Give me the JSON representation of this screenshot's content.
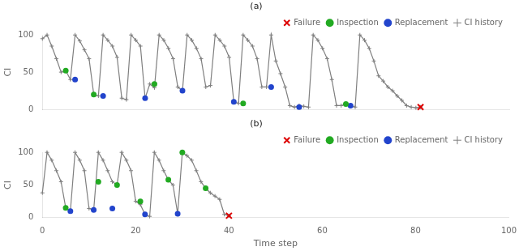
{
  "chart_data": [
    {
      "type": "line",
      "title": "(a)",
      "ylabel": "CI",
      "xlim": [
        0,
        100
      ],
      "ylim": [
        0,
        100
      ],
      "xticks": [
        0,
        20,
        40,
        60,
        80,
        100
      ],
      "yticks": [
        0,
        50,
        100
      ],
      "grid": false,
      "legend": "upper right",
      "tick_labels": "y",
      "series": [
        {
          "name": "CI history",
          "type": "line",
          "color": "#7f7f7f",
          "marker": "plus",
          "x": [
            0,
            1,
            2,
            3,
            4,
            5,
            6,
            7,
            8,
            9,
            10,
            11,
            12,
            13,
            14,
            15,
            16,
            17,
            18,
            19,
            20,
            21,
            22,
            23,
            24,
            25,
            26,
            27,
            28,
            29,
            30,
            31,
            32,
            33,
            34,
            35,
            36,
            37,
            38,
            39,
            40,
            41,
            42,
            43,
            44,
            45,
            46,
            47,
            48,
            49,
            50,
            51,
            52,
            53,
            54,
            55,
            56,
            57,
            58,
            59,
            60,
            61,
            62,
            63,
            64,
            65,
            66,
            67,
            68,
            69,
            70,
            71,
            72,
            73,
            74,
            75,
            76,
            77,
            78,
            79,
            80,
            81
          ],
          "values": [
            95,
            100,
            85,
            68,
            50,
            52,
            40,
            100,
            92,
            80,
            68,
            20,
            18,
            100,
            93,
            85,
            70,
            15,
            13,
            100,
            93,
            85,
            15,
            34,
            29,
            100,
            93,
            82,
            68,
            30,
            25,
            100,
            93,
            82,
            68,
            30,
            32,
            100,
            93,
            85,
            70,
            10,
            8,
            100,
            93,
            85,
            68,
            30,
            30,
            100,
            65,
            48,
            30,
            5,
            3,
            5,
            4,
            3,
            100,
            93,
            82,
            68,
            40,
            5,
            5,
            7,
            5,
            3,
            100,
            93,
            82,
            65,
            45,
            38,
            30,
            25,
            18,
            12,
            5,
            3,
            2,
            3
          ]
        },
        {
          "name": "Failure",
          "type": "scatter",
          "color": "#dd0000",
          "marker": "x",
          "x": [
            81
          ],
          "values": [
            3
          ]
        },
        {
          "name": "Inspection",
          "type": "scatter",
          "color": "#22aa22",
          "marker": "circle",
          "x": [
            5,
            11,
            24,
            43,
            65
          ],
          "values": [
            52,
            20,
            34,
            8,
            7
          ]
        },
        {
          "name": "Replacement",
          "type": "scatter",
          "color": "#2244cc",
          "marker": "circle",
          "x": [
            7,
            13,
            22,
            30,
            41,
            49,
            55,
            66
          ],
          "values": [
            40,
            18,
            15,
            25,
            10,
            30,
            3,
            5
          ]
        }
      ]
    },
    {
      "type": "line",
      "title": "(b)",
      "xlabel": "Time step",
      "ylabel": "CI",
      "xlim": [
        0,
        100
      ],
      "ylim": [
        0,
        100
      ],
      "xticks": [
        0,
        20,
        40,
        60,
        80,
        100
      ],
      "yticks": [
        0,
        50,
        100
      ],
      "grid": false,
      "legend": "upper right",
      "series": [
        {
          "name": "CI history",
          "type": "line",
          "color": "#7f7f7f",
          "marker": "plus",
          "x": [
            0,
            1,
            2,
            3,
            4,
            5,
            6,
            7,
            8,
            9,
            10,
            11,
            12,
            13,
            14,
            15,
            16,
            17,
            18,
            19,
            20,
            21,
            22,
            23,
            24,
            25,
            26,
            27,
            28,
            29,
            30,
            31,
            32,
            33,
            34,
            35,
            36,
            37,
            38,
            39,
            40
          ],
          "values": [
            38,
            100,
            88,
            72,
            55,
            15,
            10,
            100,
            88,
            72,
            14,
            12,
            100,
            88,
            72,
            55,
            50,
            100,
            88,
            72,
            25,
            20,
            5,
            2,
            100,
            88,
            72,
            58,
            50,
            6,
            100,
            95,
            88,
            72,
            55,
            45,
            38,
            33,
            28,
            5,
            3
          ]
        },
        {
          "name": "Failure",
          "type": "scatter",
          "color": "#dd0000",
          "marker": "x",
          "x": [
            40
          ],
          "values": [
            3
          ]
        },
        {
          "name": "Inspection",
          "type": "scatter",
          "color": "#22aa22",
          "marker": "circle",
          "x": [
            5,
            12,
            16,
            21,
            27,
            30,
            35
          ],
          "values": [
            15,
            55,
            50,
            25,
            58,
            100,
            45
          ]
        },
        {
          "name": "Replacement",
          "type": "scatter",
          "color": "#2244cc",
          "marker": "circle",
          "x": [
            6,
            11,
            15,
            22,
            29
          ],
          "values": [
            10,
            12,
            14,
            5,
            6
          ]
        }
      ]
    }
  ]
}
